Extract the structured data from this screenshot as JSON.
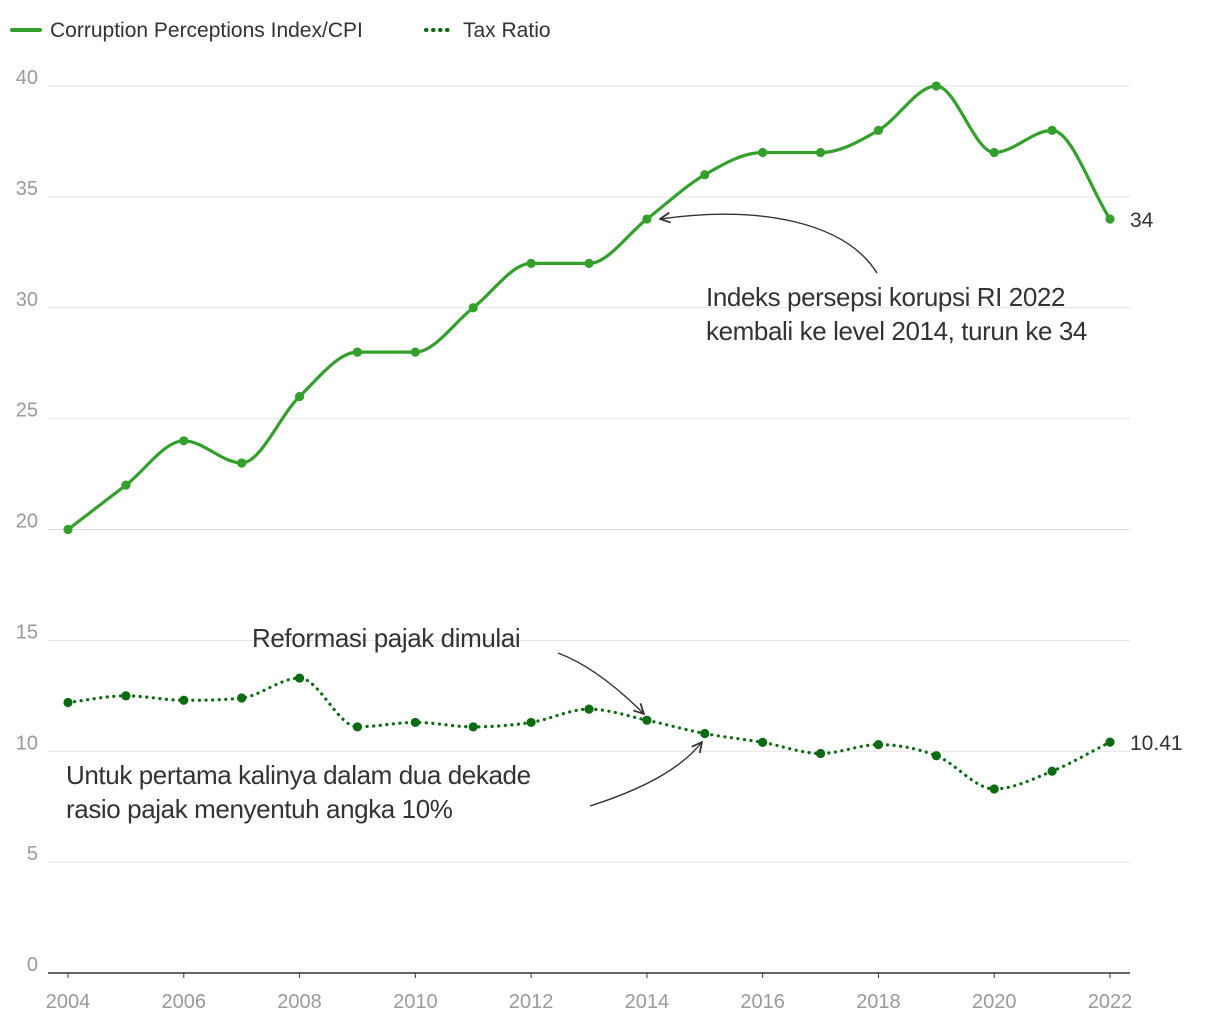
{
  "chart_data": {
    "type": "line",
    "title": "",
    "xlabel": "",
    "ylabel": "",
    "x": [
      2004,
      2005,
      2006,
      2007,
      2008,
      2009,
      2010,
      2011,
      2012,
      2013,
      2014,
      2015,
      2016,
      2017,
      2018,
      2019,
      2020,
      2021,
      2022
    ],
    "xlim": [
      2004,
      2022
    ],
    "ylim": [
      0,
      40
    ],
    "x_ticks": [
      "2004",
      "2006",
      "2008",
      "2010",
      "2012",
      "2014",
      "2016",
      "2018",
      "2020",
      "2022"
    ],
    "y_ticks": [
      "0",
      "5",
      "10",
      "15",
      "20",
      "25",
      "30",
      "35",
      "40"
    ],
    "grid": true,
    "legend_position": "top-left",
    "series": [
      {
        "name": "Corruption Perceptions Index/CPI",
        "style": "solid",
        "color": "#33a02c",
        "values": [
          20,
          22,
          24,
          23,
          26,
          28,
          28,
          30,
          32,
          32,
          34,
          36,
          37,
          37,
          38,
          40,
          37,
          38,
          34
        ],
        "end_label": "34"
      },
      {
        "name": "Tax Ratio",
        "style": "dotted",
        "color": "#0b6b12",
        "values": [
          12.2,
          12.5,
          12.3,
          12.4,
          13.3,
          11.1,
          11.3,
          11.1,
          11.3,
          11.9,
          11.4,
          10.8,
          10.4,
          9.9,
          10.3,
          9.8,
          8.3,
          9.1,
          10.41
        ],
        "end_label": "10.41"
      }
    ],
    "annotations": [
      {
        "lines": [
          "Indeks persepsi korupsi RI 2022",
          "kembali ke level 2014, turun ke 34"
        ],
        "target_series": 0,
        "target_x": 2014
      },
      {
        "lines": [
          "Reformasi pajak dimulai"
        ],
        "target_series": 1,
        "target_x": 2014
      },
      {
        "lines": [
          "Untuk pertama kalinya dalam dua dekade",
          "rasio pajak menyentuh angka 10%"
        ],
        "target_series": 1,
        "target_x": 2015
      }
    ]
  }
}
